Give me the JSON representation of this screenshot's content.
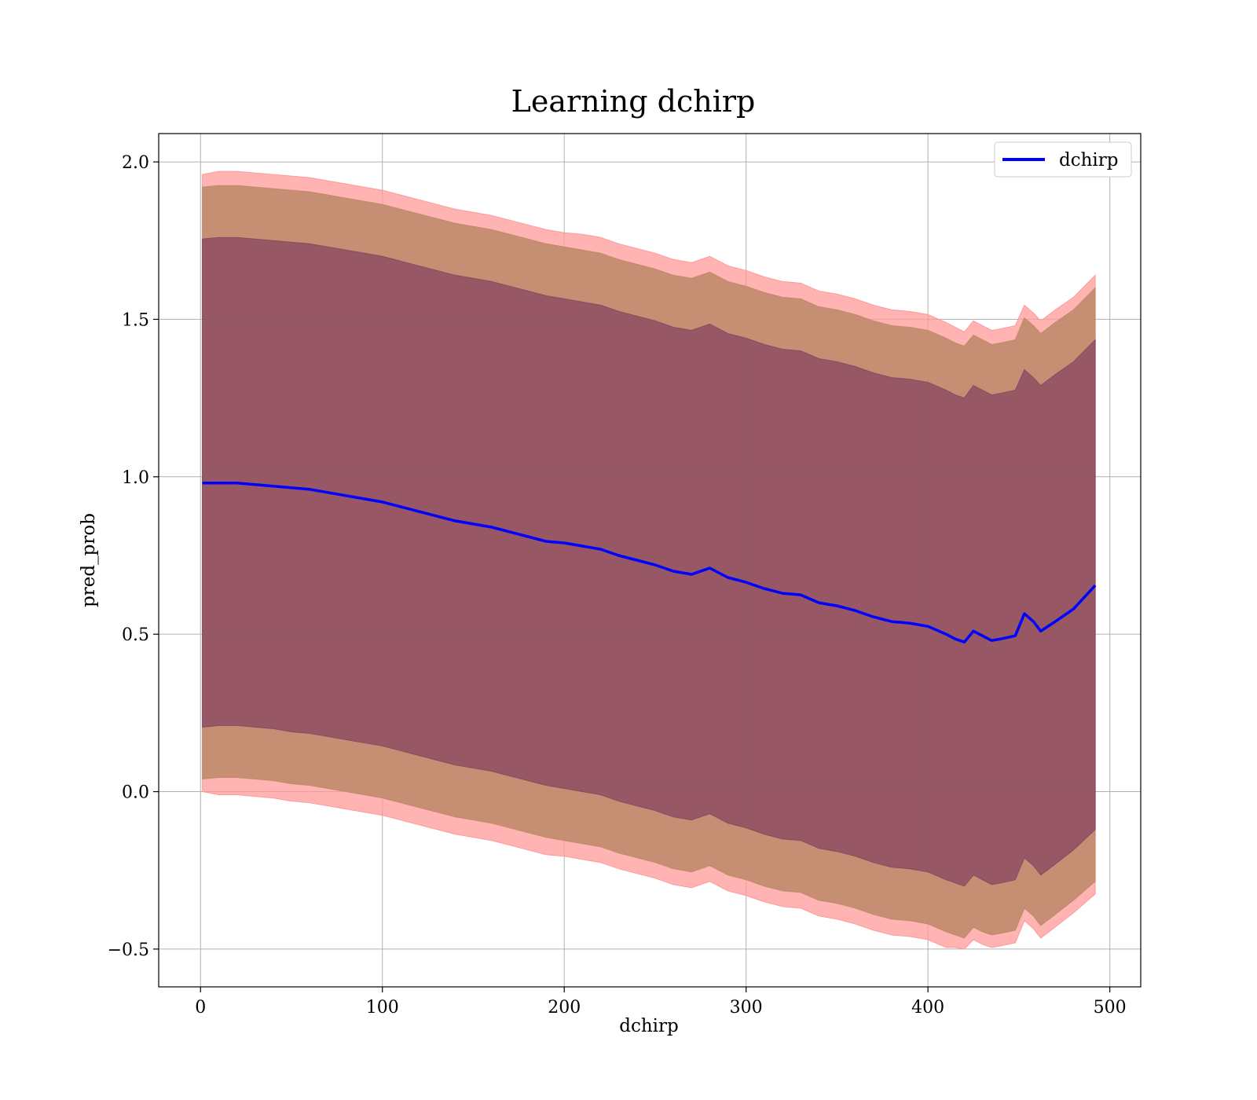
{
  "chart_data": {
    "type": "line",
    "title": "Learning dchirp",
    "xlabel": "dchirp",
    "ylabel": "pred_prob",
    "xlim": [
      -23,
      517
    ],
    "ylim": [
      -0.62,
      2.09
    ],
    "xticks": [
      0,
      100,
      200,
      300,
      400,
      500
    ],
    "yticks": [
      -0.5,
      0.0,
      0.5,
      1.0,
      1.5,
      2.0
    ],
    "xtick_labels": [
      "0",
      "100",
      "200",
      "300",
      "400",
      "500"
    ],
    "ytick_labels": [
      "−0.5",
      "0.0",
      "0.5",
      "1.0",
      "1.5",
      "2.0"
    ],
    "grid": true,
    "legend": {
      "position": "top-right",
      "entries": [
        "dchirp"
      ]
    },
    "colors": {
      "line": "#0000ff",
      "band_outer": "#ff9999",
      "band_middle": "#c08a6a",
      "band_inner": "#8b4a62"
    },
    "series": [
      {
        "name": "dchirp",
        "x": [
          1,
          10,
          20,
          30,
          40,
          50,
          60,
          70,
          80,
          90,
          100,
          110,
          120,
          130,
          140,
          150,
          160,
          170,
          180,
          190,
          200,
          210,
          220,
          230,
          240,
          250,
          260,
          270,
          280,
          290,
          300,
          310,
          320,
          330,
          340,
          350,
          360,
          370,
          380,
          390,
          400,
          410,
          415,
          420,
          425,
          430,
          435,
          440,
          448,
          453,
          458,
          462,
          470,
          480,
          492
        ],
        "y": [
          0.98,
          0.98,
          0.98,
          0.975,
          0.97,
          0.965,
          0.96,
          0.95,
          0.94,
          0.93,
          0.92,
          0.905,
          0.89,
          0.875,
          0.86,
          0.85,
          0.84,
          0.825,
          0.81,
          0.795,
          0.79,
          0.78,
          0.77,
          0.75,
          0.735,
          0.72,
          0.7,
          0.69,
          0.71,
          0.68,
          0.665,
          0.645,
          0.63,
          0.625,
          0.6,
          0.59,
          0.575,
          0.555,
          0.54,
          0.535,
          0.525,
          0.5,
          0.485,
          0.475,
          0.51,
          0.495,
          0.48,
          0.485,
          0.495,
          0.565,
          0.54,
          0.51,
          0.54,
          0.58,
          0.655
        ]
      }
    ],
    "bands": [
      {
        "name": "outer",
        "x": [
          1,
          10,
          20,
          30,
          40,
          50,
          60,
          70,
          80,
          90,
          100,
          110,
          120,
          130,
          140,
          150,
          160,
          170,
          180,
          190,
          200,
          210,
          220,
          230,
          240,
          250,
          260,
          270,
          280,
          290,
          300,
          310,
          320,
          330,
          340,
          350,
          360,
          370,
          380,
          390,
          400,
          410,
          415,
          420,
          425,
          430,
          435,
          440,
          448,
          453,
          458,
          462,
          470,
          480,
          492
        ],
        "lower": [
          0.0,
          -0.01,
          -0.01,
          -0.015,
          -0.02,
          -0.03,
          -0.035,
          -0.045,
          -0.055,
          -0.065,
          -0.075,
          -0.09,
          -0.105,
          -0.12,
          -0.135,
          -0.145,
          -0.155,
          -0.17,
          -0.185,
          -0.2,
          -0.205,
          -0.215,
          -0.225,
          -0.245,
          -0.26,
          -0.275,
          -0.295,
          -0.305,
          -0.285,
          -0.315,
          -0.33,
          -0.35,
          -0.365,
          -0.37,
          -0.395,
          -0.405,
          -0.42,
          -0.44,
          -0.455,
          -0.46,
          -0.47,
          -0.495,
          -0.495,
          -0.5,
          -0.47,
          -0.485,
          -0.495,
          -0.49,
          -0.48,
          -0.41,
          -0.435,
          -0.465,
          -0.43,
          -0.385,
          -0.325
        ],
        "upper": [
          1.96,
          1.97,
          1.97,
          1.965,
          1.96,
          1.955,
          1.95,
          1.94,
          1.93,
          1.92,
          1.91,
          1.895,
          1.88,
          1.865,
          1.85,
          1.84,
          1.83,
          1.815,
          1.8,
          1.785,
          1.775,
          1.77,
          1.76,
          1.74,
          1.725,
          1.71,
          1.69,
          1.68,
          1.7,
          1.67,
          1.655,
          1.635,
          1.62,
          1.615,
          1.59,
          1.58,
          1.565,
          1.545,
          1.53,
          1.525,
          1.515,
          1.49,
          1.475,
          1.46,
          1.495,
          1.48,
          1.465,
          1.47,
          1.48,
          1.545,
          1.52,
          1.495,
          1.53,
          1.57,
          1.64
        ]
      },
      {
        "name": "middle",
        "x": [
          1,
          10,
          20,
          30,
          40,
          50,
          60,
          70,
          80,
          90,
          100,
          110,
          120,
          130,
          140,
          150,
          160,
          170,
          180,
          190,
          200,
          210,
          220,
          230,
          240,
          250,
          260,
          270,
          280,
          290,
          300,
          310,
          320,
          330,
          340,
          350,
          360,
          370,
          380,
          390,
          400,
          410,
          415,
          420,
          425,
          430,
          435,
          440,
          448,
          453,
          458,
          462,
          470,
          480,
          492
        ],
        "lower": [
          0.04,
          0.045,
          0.045,
          0.04,
          0.035,
          0.025,
          0.02,
          0.01,
          0.0,
          -0.01,
          -0.02,
          -0.035,
          -0.05,
          -0.065,
          -0.08,
          -0.09,
          -0.1,
          -0.115,
          -0.13,
          -0.145,
          -0.155,
          -0.165,
          -0.175,
          -0.195,
          -0.21,
          -0.225,
          -0.245,
          -0.255,
          -0.235,
          -0.265,
          -0.28,
          -0.3,
          -0.315,
          -0.32,
          -0.345,
          -0.355,
          -0.37,
          -0.39,
          -0.405,
          -0.41,
          -0.42,
          -0.445,
          -0.455,
          -0.465,
          -0.43,
          -0.445,
          -0.455,
          -0.45,
          -0.44,
          -0.37,
          -0.395,
          -0.425,
          -0.39,
          -0.345,
          -0.285
        ],
        "upper": [
          1.92,
          1.925,
          1.925,
          1.92,
          1.915,
          1.91,
          1.905,
          1.895,
          1.885,
          1.875,
          1.865,
          1.85,
          1.835,
          1.82,
          1.805,
          1.795,
          1.785,
          1.77,
          1.755,
          1.74,
          1.73,
          1.72,
          1.71,
          1.69,
          1.675,
          1.66,
          1.64,
          1.63,
          1.65,
          1.62,
          1.605,
          1.585,
          1.57,
          1.565,
          1.54,
          1.53,
          1.515,
          1.495,
          1.48,
          1.475,
          1.465,
          1.44,
          1.425,
          1.415,
          1.45,
          1.435,
          1.42,
          1.425,
          1.435,
          1.505,
          1.48,
          1.455,
          1.49,
          1.53,
          1.6
        ]
      },
      {
        "name": "inner",
        "x": [
          1,
          10,
          20,
          30,
          40,
          50,
          60,
          70,
          80,
          90,
          100,
          110,
          120,
          130,
          140,
          150,
          160,
          170,
          180,
          190,
          200,
          210,
          220,
          230,
          240,
          250,
          260,
          270,
          280,
          290,
          300,
          310,
          320,
          330,
          340,
          350,
          360,
          370,
          380,
          390,
          400,
          410,
          415,
          420,
          425,
          430,
          435,
          440,
          448,
          453,
          458,
          462,
          470,
          480,
          492
        ],
        "lower": [
          0.205,
          0.21,
          0.21,
          0.205,
          0.2,
          0.19,
          0.185,
          0.175,
          0.165,
          0.155,
          0.145,
          0.13,
          0.115,
          0.1,
          0.085,
          0.075,
          0.065,
          0.05,
          0.035,
          0.02,
          0.01,
          0.0,
          -0.01,
          -0.03,
          -0.045,
          -0.06,
          -0.08,
          -0.09,
          -0.07,
          -0.1,
          -0.115,
          -0.135,
          -0.15,
          -0.155,
          -0.18,
          -0.19,
          -0.205,
          -0.225,
          -0.24,
          -0.245,
          -0.255,
          -0.28,
          -0.29,
          -0.3,
          -0.265,
          -0.28,
          -0.295,
          -0.29,
          -0.28,
          -0.21,
          -0.235,
          -0.265,
          -0.23,
          -0.185,
          -0.12
        ],
        "upper": [
          1.755,
          1.76,
          1.76,
          1.755,
          1.75,
          1.745,
          1.74,
          1.73,
          1.72,
          1.71,
          1.7,
          1.685,
          1.67,
          1.655,
          1.64,
          1.63,
          1.62,
          1.605,
          1.59,
          1.575,
          1.565,
          1.555,
          1.545,
          1.525,
          1.51,
          1.495,
          1.475,
          1.465,
          1.485,
          1.455,
          1.44,
          1.42,
          1.405,
          1.4,
          1.375,
          1.365,
          1.35,
          1.33,
          1.315,
          1.31,
          1.3,
          1.275,
          1.26,
          1.25,
          1.29,
          1.275,
          1.26,
          1.265,
          1.275,
          1.34,
          1.315,
          1.29,
          1.325,
          1.365,
          1.435
        ]
      }
    ]
  }
}
